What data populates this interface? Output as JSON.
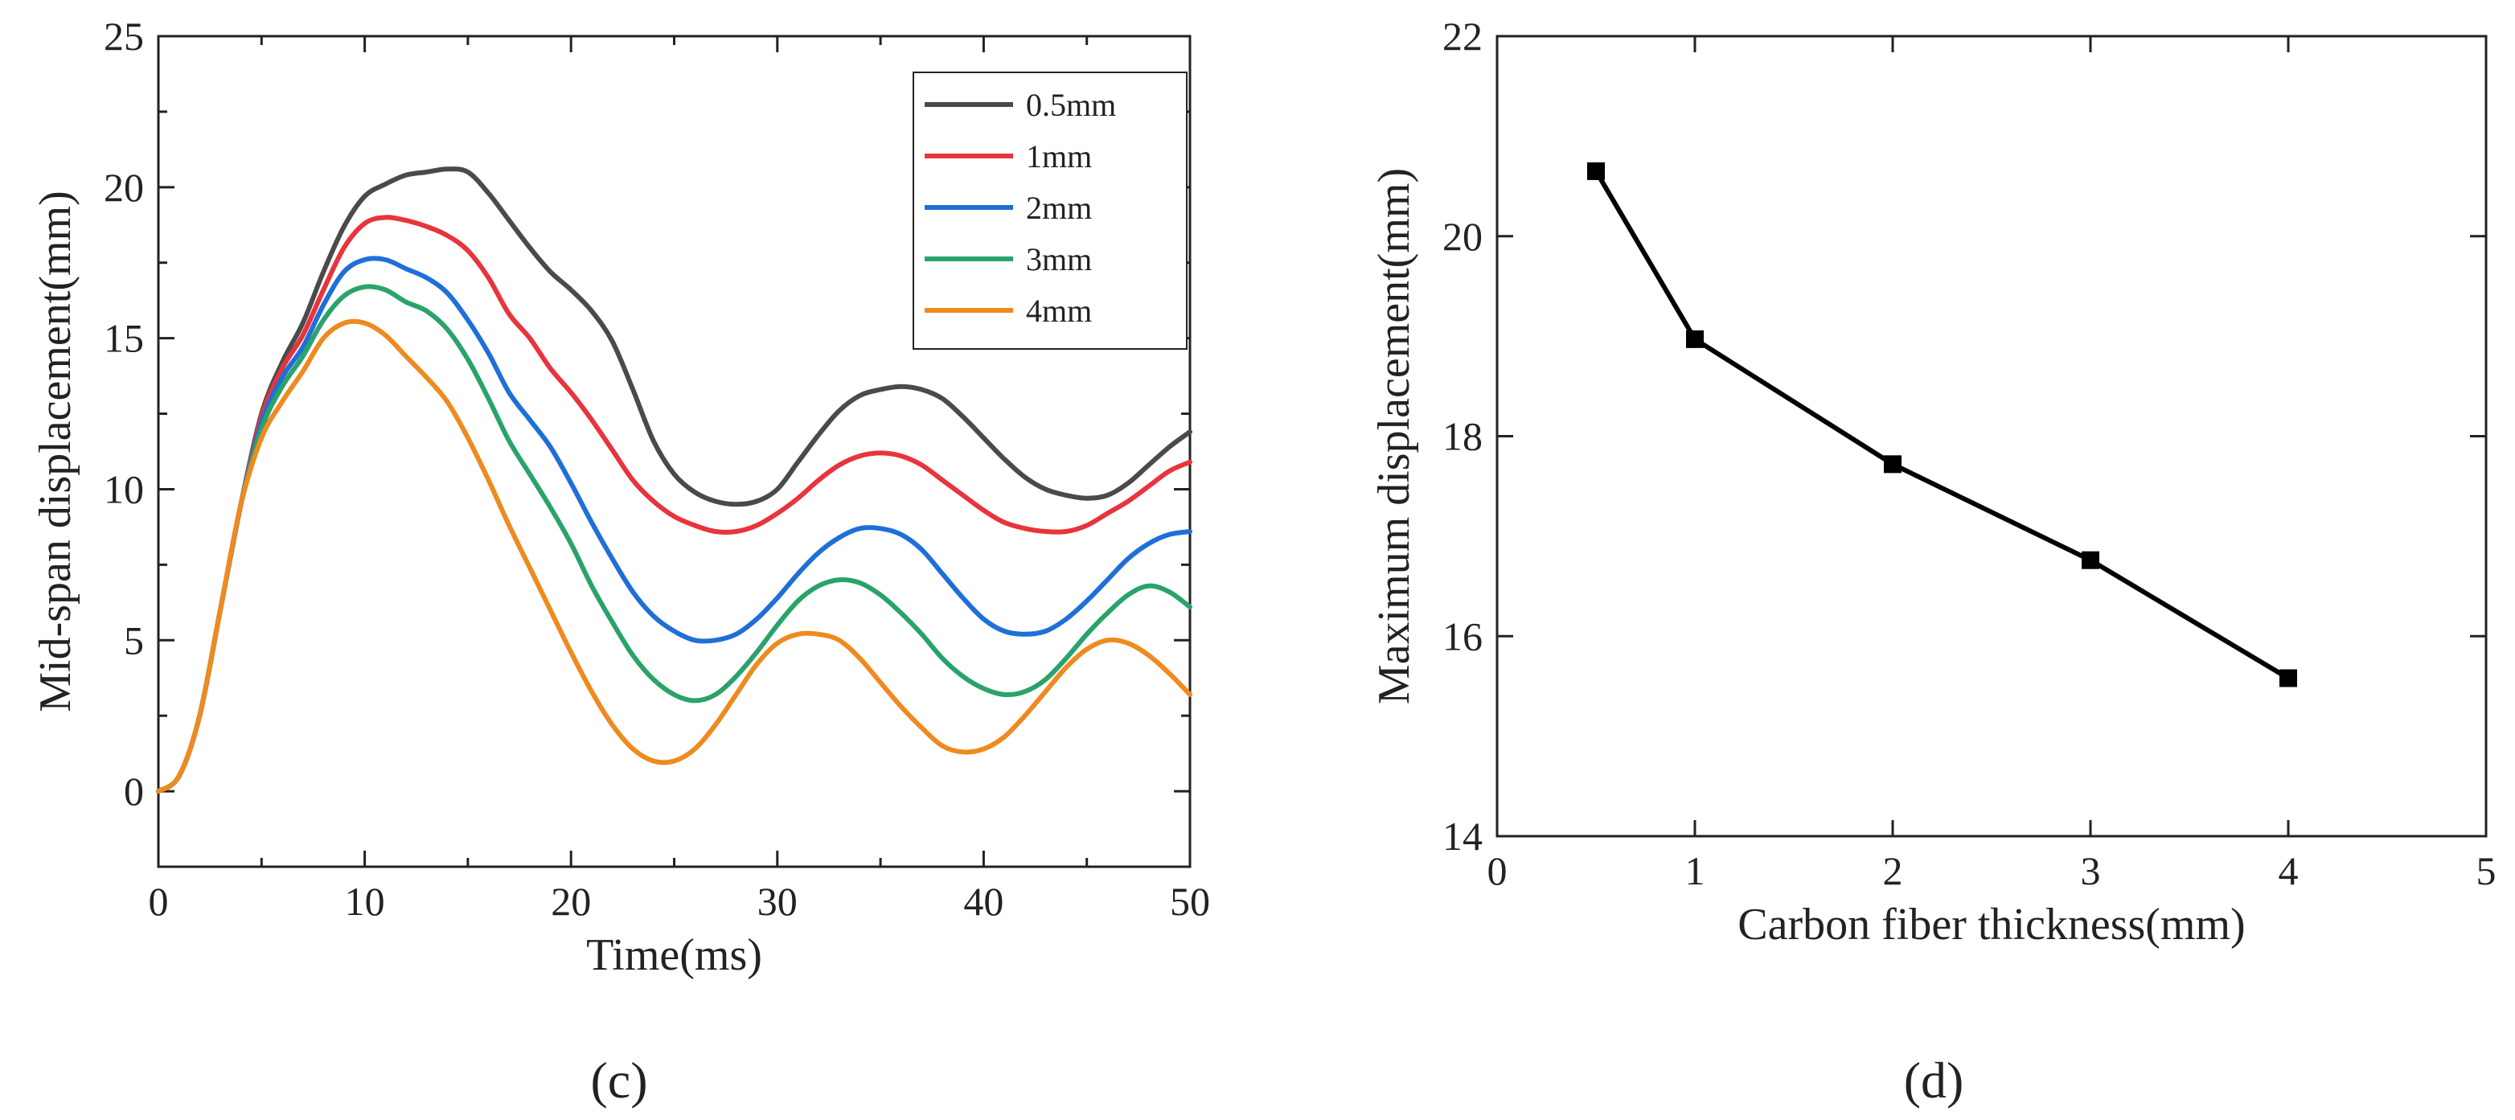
{
  "chart_data": [
    {
      "panel": "(c)",
      "type": "line",
      "title": "",
      "xlabel": "Time(ms)",
      "ylabel": "Mid-span displacement(mm)",
      "xlim": [
        0,
        50
      ],
      "ylim": [
        -2.5,
        25
      ],
      "xticks": [
        0,
        10,
        20,
        30,
        40,
        50
      ],
      "yticks": [
        0,
        5,
        10,
        15,
        20,
        25
      ],
      "grid": false,
      "legend": "top-right",
      "series": [
        {
          "name": "0.5mm",
          "color": "#4a4a4a",
          "x": [
            0,
            1,
            2,
            3,
            4,
            5,
            6,
            7,
            8,
            9,
            10,
            11,
            12,
            13,
            14,
            15,
            16,
            17,
            18,
            19,
            20,
            21,
            22,
            23,
            24,
            25,
            26,
            27,
            28,
            29,
            30,
            31,
            32,
            33,
            34,
            35,
            36,
            37,
            38,
            39,
            40,
            41,
            42,
            43,
            44,
            45,
            46,
            47,
            48,
            49,
            50
          ],
          "values": [
            0,
            0.5,
            2.5,
            6,
            9.5,
            12.5,
            14.2,
            15.5,
            17.2,
            18.7,
            19.7,
            20.1,
            20.4,
            20.5,
            20.6,
            20.5,
            19.8,
            18.9,
            18.0,
            17.2,
            16.6,
            15.9,
            14.9,
            13.3,
            11.6,
            10.5,
            9.9,
            9.6,
            9.5,
            9.6,
            10.0,
            10.9,
            11.8,
            12.6,
            13.1,
            13.3,
            13.4,
            13.3,
            13.0,
            12.4,
            11.7,
            11.0,
            10.4,
            10.0,
            9.8,
            9.7,
            9.8,
            10.2,
            10.8,
            11.4,
            11.9
          ]
        },
        {
          "name": "1mm",
          "color": "#e8343c",
          "x": [
            0,
            1,
            2,
            3,
            4,
            5,
            6,
            7,
            8,
            9,
            10,
            11,
            12,
            13,
            14,
            15,
            16,
            17,
            18,
            19,
            20,
            21,
            22,
            23,
            24,
            25,
            26,
            27,
            28,
            29,
            30,
            31,
            32,
            33,
            34,
            35,
            36,
            37,
            38,
            39,
            40,
            41,
            42,
            43,
            44,
            45,
            46,
            47,
            48,
            49,
            50
          ],
          "values": [
            0,
            0.5,
            2.5,
            6,
            9.5,
            12.4,
            14.0,
            15.1,
            16.6,
            18.0,
            18.8,
            19.0,
            18.9,
            18.7,
            18.4,
            17.9,
            17.0,
            15.8,
            15.0,
            14.0,
            13.2,
            12.3,
            11.3,
            10.3,
            9.6,
            9.1,
            8.8,
            8.6,
            8.6,
            8.8,
            9.2,
            9.7,
            10.3,
            10.8,
            11.1,
            11.2,
            11.1,
            10.8,
            10.3,
            9.8,
            9.3,
            8.9,
            8.7,
            8.6,
            8.6,
            8.8,
            9.2,
            9.6,
            10.1,
            10.6,
            10.9
          ]
        },
        {
          "name": "2mm",
          "color": "#1f6fd8",
          "x": [
            0,
            1,
            2,
            3,
            4,
            5,
            6,
            7,
            8,
            9,
            10,
            11,
            12,
            13,
            14,
            15,
            16,
            17,
            18,
            19,
            20,
            21,
            22,
            23,
            24,
            25,
            26,
            27,
            28,
            29,
            30,
            31,
            32,
            33,
            34,
            35,
            36,
            37,
            38,
            39,
            40,
            41,
            42,
            43,
            44,
            45,
            46,
            47,
            48,
            49,
            50
          ],
          "values": [
            0,
            0.5,
            2.5,
            6,
            9.5,
            12.2,
            13.7,
            14.7,
            16.1,
            17.2,
            17.6,
            17.6,
            17.3,
            17.0,
            16.5,
            15.6,
            14.5,
            13.2,
            12.3,
            11.4,
            10.2,
            8.9,
            7.7,
            6.6,
            5.8,
            5.3,
            5.0,
            5.0,
            5.2,
            5.7,
            6.4,
            7.2,
            7.9,
            8.4,
            8.7,
            8.7,
            8.5,
            8.0,
            7.2,
            6.4,
            5.7,
            5.3,
            5.2,
            5.3,
            5.7,
            6.3,
            7.0,
            7.7,
            8.2,
            8.5,
            8.6
          ]
        },
        {
          "name": "3mm",
          "color": "#2aa36a",
          "x": [
            0,
            1,
            2,
            3,
            4,
            5,
            6,
            7,
            8,
            9,
            10,
            11,
            12,
            13,
            14,
            15,
            16,
            17,
            18,
            19,
            20,
            21,
            22,
            23,
            24,
            25,
            26,
            27,
            28,
            29,
            30,
            31,
            32,
            33,
            34,
            35,
            36,
            37,
            38,
            39,
            40,
            41,
            42,
            43,
            44,
            45,
            46,
            47,
            48,
            49,
            50
          ],
          "values": [
            0,
            0.5,
            2.5,
            6,
            9.5,
            12.0,
            13.4,
            14.4,
            15.6,
            16.4,
            16.7,
            16.6,
            16.2,
            15.9,
            15.3,
            14.3,
            13.0,
            11.6,
            10.5,
            9.4,
            8.2,
            6.8,
            5.6,
            4.5,
            3.7,
            3.2,
            3.0,
            3.2,
            3.8,
            4.6,
            5.5,
            6.3,
            6.8,
            7.0,
            6.9,
            6.5,
            5.9,
            5.2,
            4.4,
            3.8,
            3.4,
            3.2,
            3.3,
            3.7,
            4.4,
            5.2,
            5.9,
            6.5,
            6.8,
            6.6,
            6.1
          ]
        },
        {
          "name": "4mm",
          "color": "#ef8a1f",
          "x": [
            0,
            1,
            2,
            3,
            4,
            5,
            6,
            7,
            8,
            9,
            10,
            11,
            12,
            13,
            14,
            15,
            16,
            17,
            18,
            19,
            20,
            21,
            22,
            23,
            24,
            25,
            26,
            27,
            28,
            29,
            30,
            31,
            32,
            33,
            34,
            35,
            36,
            37,
            38,
            39,
            40,
            41,
            42,
            43,
            44,
            45,
            46,
            47,
            48,
            49,
            50
          ],
          "values": [
            0,
            0.5,
            2.5,
            6,
            9.5,
            11.7,
            12.9,
            13.9,
            15.0,
            15.5,
            15.5,
            15.1,
            14.4,
            13.7,
            12.9,
            11.7,
            10.3,
            8.8,
            7.4,
            6.0,
            4.6,
            3.3,
            2.2,
            1.4,
            1.0,
            1.0,
            1.4,
            2.2,
            3.2,
            4.2,
            4.9,
            5.2,
            5.2,
            5.0,
            4.4,
            3.6,
            2.8,
            2.1,
            1.5,
            1.3,
            1.4,
            1.8,
            2.5,
            3.3,
            4.1,
            4.7,
            5.0,
            4.9,
            4.5,
            3.9,
            3.2
          ]
        }
      ]
    },
    {
      "panel": "(d)",
      "type": "line",
      "title": "",
      "xlabel": "Carbon fiber thickness(mm)",
      "ylabel": "Maximum displacement(mm)",
      "xlim": [
        0,
        5
      ],
      "ylim": [
        14,
        22
      ],
      "xticks": [
        0,
        1,
        2,
        3,
        4,
        5
      ],
      "yticks": [
        14,
        16,
        18,
        20,
        22
      ],
      "grid": false,
      "legend": "none",
      "series": [
        {
          "color": "#000000",
          "marker": "square",
          "x": [
            0.5,
            1,
            2,
            3,
            4
          ],
          "values": [
            20.65,
            18.97,
            17.72,
            16.76,
            15.58
          ]
        }
      ]
    }
  ]
}
